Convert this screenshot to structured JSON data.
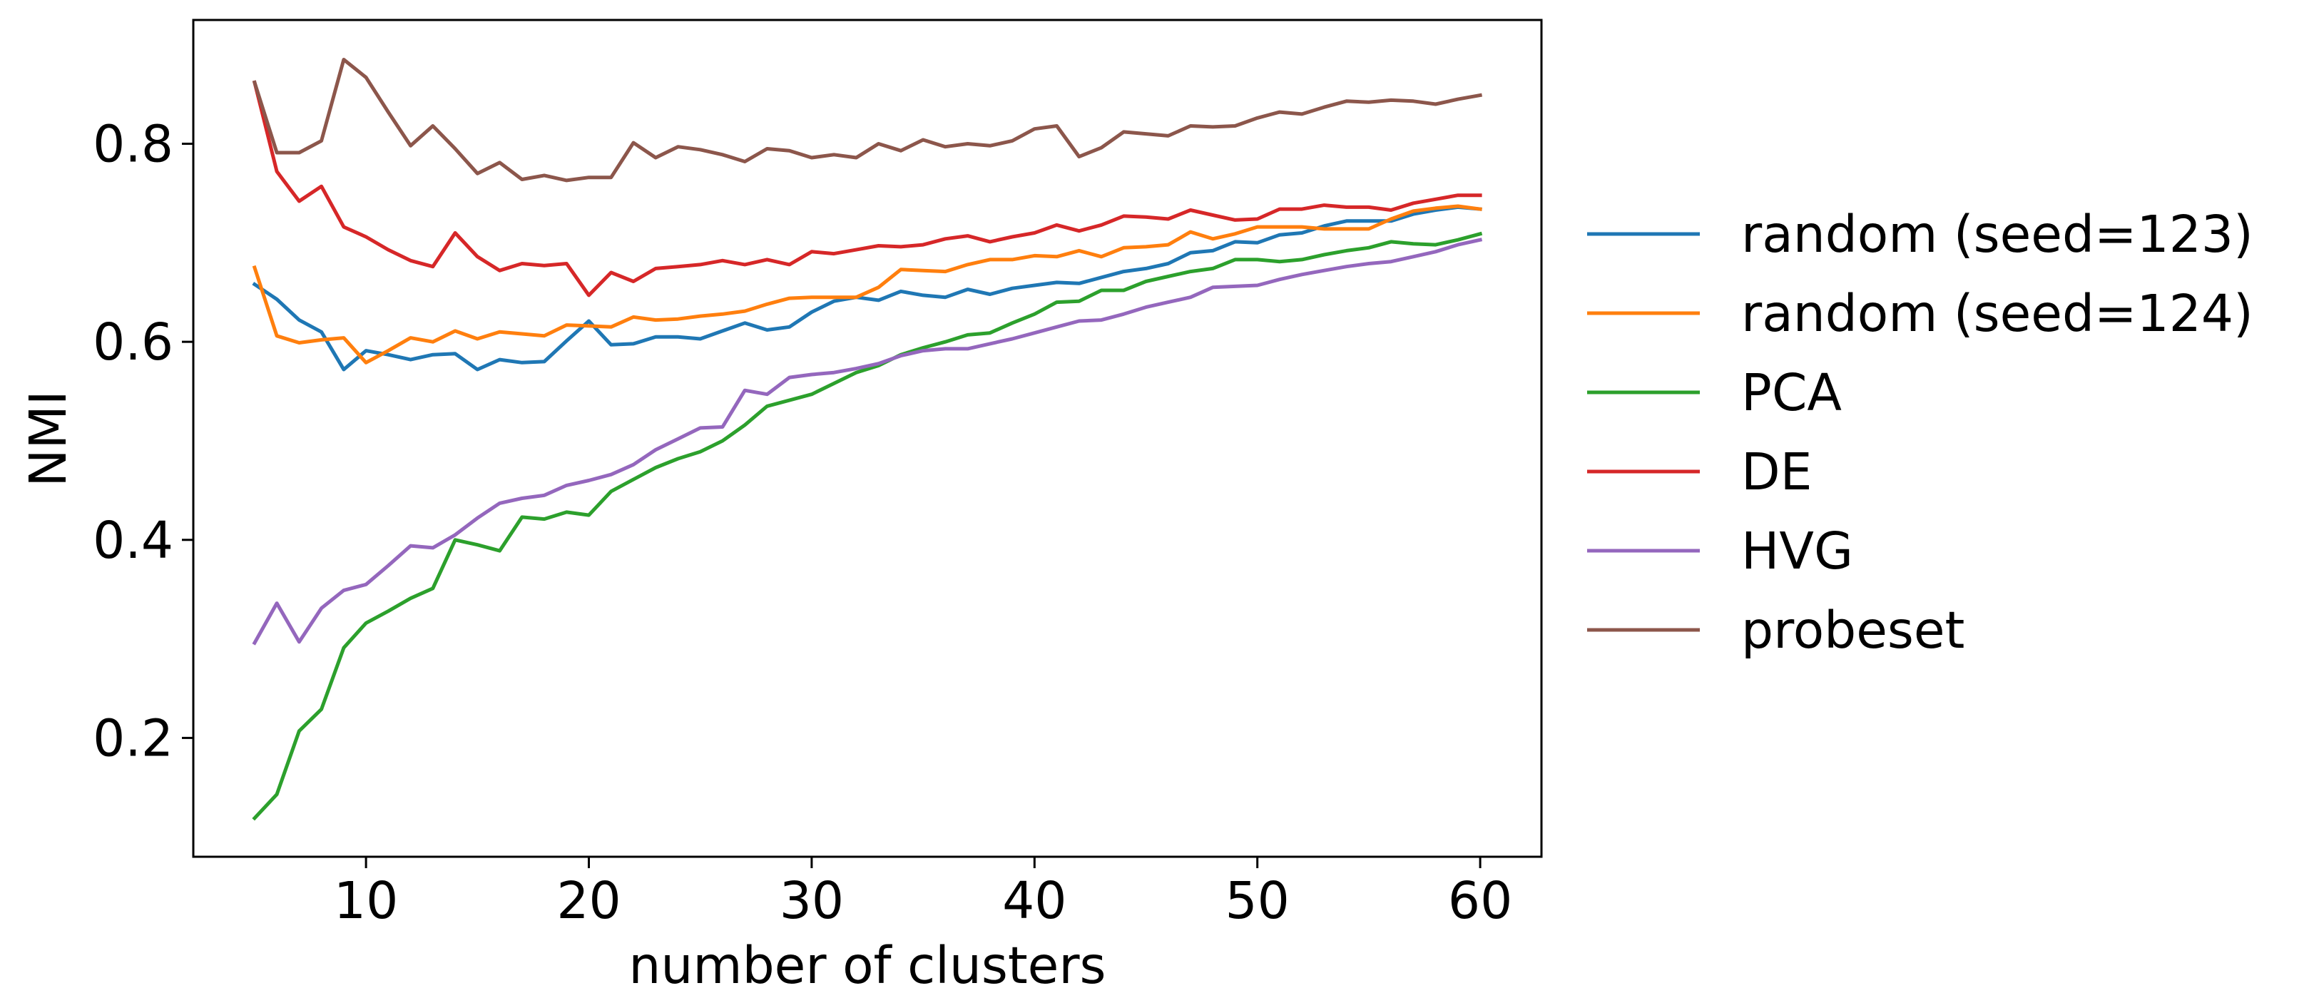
{
  "chart_data": {
    "type": "line",
    "xlabel": "number of clusters",
    "ylabel": "NMI",
    "xlim": [
      2.25,
      62.75
    ],
    "ylim": [
      0.08,
      0.925
    ],
    "xticks": [
      10,
      20,
      30,
      40,
      50,
      60
    ],
    "xtick_labels": [
      "10",
      "20",
      "30",
      "40",
      "50",
      "60"
    ],
    "yticks": [
      0.2,
      0.4,
      0.6,
      0.8
    ],
    "ytick_labels": [
      "0.2",
      "0.4",
      "0.6",
      "0.8"
    ],
    "grid": false,
    "legend_position": "outside-right",
    "x": [
      5,
      6,
      7,
      8,
      9,
      10,
      11,
      12,
      13,
      14,
      15,
      16,
      17,
      18,
      19,
      20,
      21,
      22,
      23,
      24,
      25,
      26,
      27,
      28,
      29,
      30,
      31,
      32,
      33,
      34,
      35,
      36,
      37,
      38,
      39,
      40,
      41,
      42,
      43,
      44,
      45,
      46,
      47,
      48,
      49,
      50,
      51,
      52,
      53,
      54,
      55,
      56,
      57,
      58,
      59,
      60
    ],
    "series": [
      {
        "name": "random (seed=123)",
        "color": "#1f77b4",
        "values": [
          0.658,
          0.643,
          0.622,
          0.61,
          0.572,
          0.591,
          0.587,
          0.582,
          0.587,
          0.588,
          0.572,
          0.582,
          0.579,
          0.58,
          0.601,
          0.621,
          0.597,
          0.598,
          0.605,
          0.605,
          0.603,
          0.611,
          0.619,
          0.612,
          0.615,
          0.63,
          0.641,
          0.645,
          0.642,
          0.651,
          0.647,
          0.645,
          0.653,
          0.648,
          0.654,
          0.657,
          0.66,
          0.659,
          0.665,
          0.671,
          0.674,
          0.679,
          0.69,
          0.692,
          0.701,
          0.7,
          0.708,
          0.71,
          0.717,
          0.722,
          0.722,
          0.722,
          0.729,
          0.733,
          0.736,
          0.734
        ]
      },
      {
        "name": "random (seed=124)",
        "color": "#ff7f0e",
        "values": [
          0.675,
          0.606,
          0.599,
          0.602,
          0.604,
          0.579,
          0.591,
          0.604,
          0.6,
          0.611,
          0.603,
          0.61,
          0.608,
          0.606,
          0.617,
          0.616,
          0.615,
          0.625,
          0.622,
          0.623,
          0.626,
          0.628,
          0.631,
          0.638,
          0.644,
          0.645,
          0.645,
          0.645,
          0.655,
          0.673,
          0.672,
          0.671,
          0.678,
          0.683,
          0.683,
          0.687,
          0.686,
          0.692,
          0.686,
          0.695,
          0.696,
          0.698,
          0.711,
          0.704,
          0.709,
          0.716,
          0.716,
          0.716,
          0.714,
          0.714,
          0.714,
          0.724,
          0.732,
          0.735,
          0.737,
          0.734
        ]
      },
      {
        "name": "PCA",
        "color": "#2ca02c",
        "values": [
          0.119,
          0.143,
          0.207,
          0.229,
          0.291,
          0.316,
          0.328,
          0.341,
          0.351,
          0.4,
          0.395,
          0.389,
          0.423,
          0.421,
          0.428,
          0.425,
          0.449,
          0.461,
          0.473,
          0.482,
          0.489,
          0.5,
          0.516,
          0.535,
          0.541,
          0.547,
          0.558,
          0.569,
          0.576,
          0.587,
          0.594,
          0.6,
          0.607,
          0.609,
          0.619,
          0.628,
          0.64,
          0.641,
          0.652,
          0.652,
          0.661,
          0.666,
          0.671,
          0.674,
          0.683,
          0.683,
          0.681,
          0.683,
          0.688,
          0.692,
          0.695,
          0.701,
          0.699,
          0.698,
          0.703,
          0.709
        ]
      },
      {
        "name": "DE",
        "color": "#d62728",
        "values": [
          0.862,
          0.772,
          0.742,
          0.757,
          0.716,
          0.706,
          0.693,
          0.682,
          0.676,
          0.71,
          0.686,
          0.672,
          0.679,
          0.677,
          0.679,
          0.647,
          0.67,
          0.661,
          0.674,
          0.676,
          0.678,
          0.682,
          0.678,
          0.683,
          0.678,
          0.691,
          0.689,
          0.693,
          0.697,
          0.696,
          0.698,
          0.704,
          0.707,
          0.701,
          0.706,
          0.71,
          0.718,
          0.712,
          0.718,
          0.727,
          0.726,
          0.724,
          0.733,
          0.728,
          0.723,
          0.724,
          0.734,
          0.734,
          0.738,
          0.736,
          0.736,
          0.733,
          0.74,
          0.744,
          0.748,
          0.748
        ]
      },
      {
        "name": "HVG",
        "color": "#9467bd",
        "values": [
          0.296,
          0.336,
          0.297,
          0.331,
          0.349,
          0.355,
          0.374,
          0.394,
          0.392,
          0.405,
          0.422,
          0.437,
          0.442,
          0.445,
          0.455,
          0.46,
          0.466,
          0.476,
          0.491,
          0.502,
          0.513,
          0.514,
          0.551,
          0.547,
          0.564,
          0.567,
          0.569,
          0.573,
          0.578,
          0.586,
          0.591,
          0.593,
          0.593,
          0.598,
          0.603,
          0.609,
          0.615,
          0.621,
          0.622,
          0.628,
          0.635,
          0.64,
          0.645,
          0.655,
          0.656,
          0.657,
          0.663,
          0.668,
          0.672,
          0.676,
          0.679,
          0.681,
          0.686,
          0.691,
          0.698,
          0.703
        ]
      },
      {
        "name": "probeset",
        "color": "#8c564b",
        "values": [
          0.862,
          0.791,
          0.791,
          0.803,
          0.885,
          0.867,
          0.832,
          0.798,
          0.818,
          0.795,
          0.77,
          0.781,
          0.764,
          0.768,
          0.763,
          0.766,
          0.766,
          0.801,
          0.786,
          0.797,
          0.794,
          0.789,
          0.782,
          0.795,
          0.793,
          0.786,
          0.789,
          0.786,
          0.8,
          0.793,
          0.804,
          0.797,
          0.8,
          0.798,
          0.803,
          0.815,
          0.818,
          0.787,
          0.796,
          0.812,
          0.81,
          0.808,
          0.818,
          0.817,
          0.818,
          0.826,
          0.832,
          0.83,
          0.837,
          0.843,
          0.842,
          0.844,
          0.843,
          0.84,
          0.845,
          0.849
        ]
      }
    ]
  }
}
